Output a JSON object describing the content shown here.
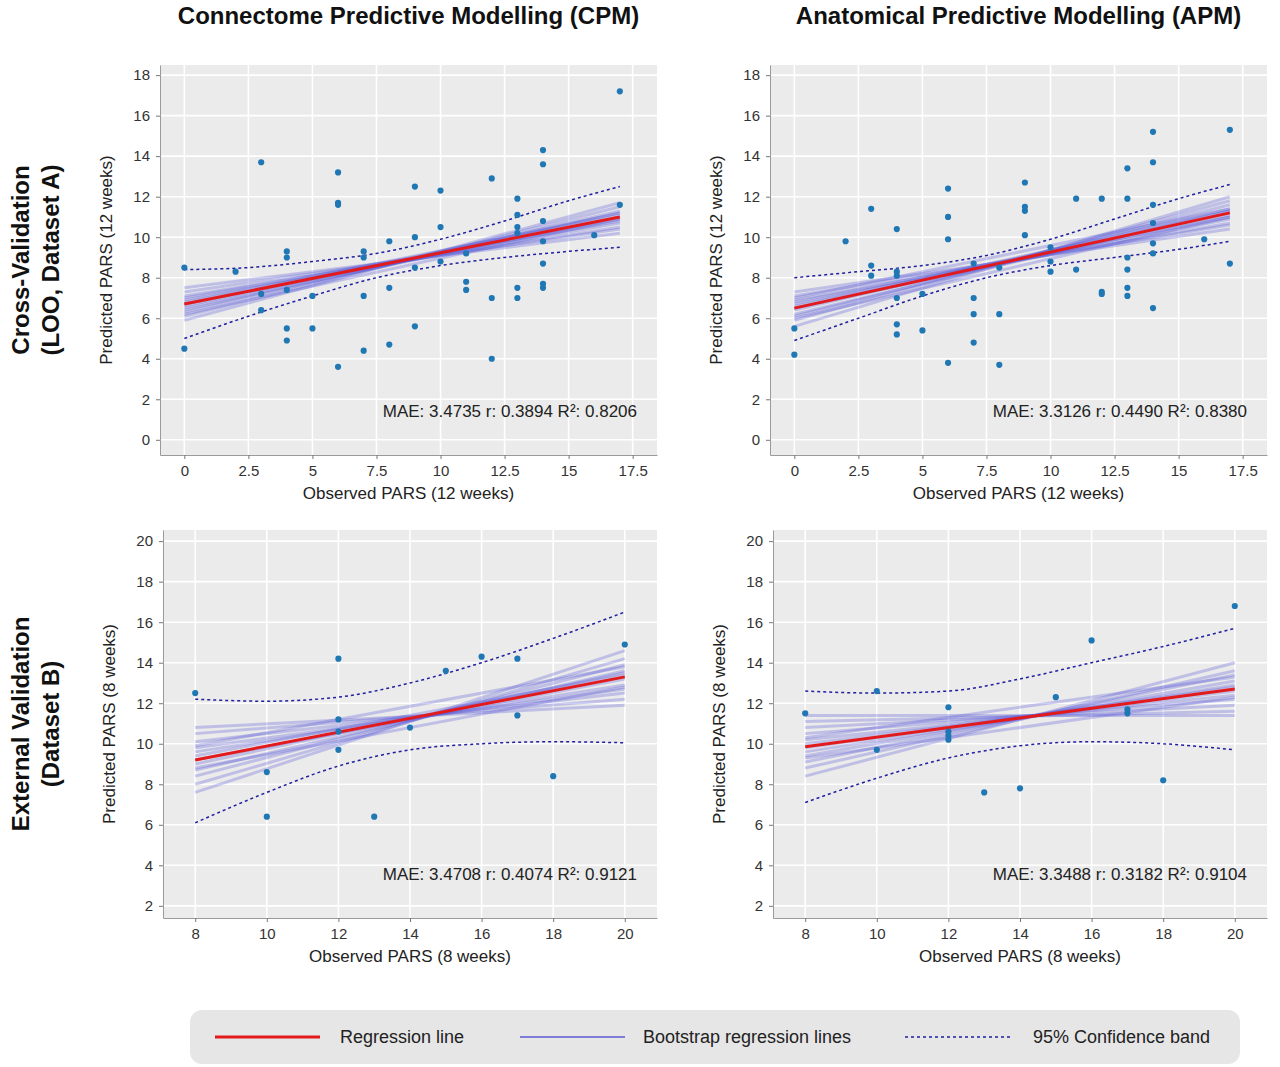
{
  "figure": {
    "column_titles": [
      "Connectome Predictive Modelling (CPM)",
      "Anatomical Predictive Modelling (APM)"
    ],
    "row_titles": [
      [
        "Cross-Validation",
        "(LOO, Dataset A)"
      ],
      [
        "External Validation",
        "(Dataset B)"
      ]
    ],
    "legend": [
      {
        "label": "Regression line",
        "color": "#e31a1c",
        "line_style": "solid"
      },
      {
        "label": "Bootstrap regression lines",
        "color": "#5b5bd6",
        "line_style": "solid"
      },
      {
        "label": "95% Confidence band",
        "color": "#1f1fa0",
        "line_style": "dotted"
      }
    ]
  },
  "chart_data": [
    {
      "type": "scatter",
      "x_label": "Observed PARS (12 weeks)",
      "y_label": "Predicted PARS (12 weeks)",
      "annotation": "MAE: 3.4735 r: 0.3894 R²: 0.8206",
      "color": "#1f77b4",
      "marker": "circle",
      "grid": true,
      "xlim": [
        -0.95,
        18.45
      ],
      "ylim": [
        -0.75,
        18.5
      ],
      "xticks": [
        0,
        2.5,
        5,
        7.5,
        10,
        12.5,
        15,
        17.5
      ],
      "yticks": [
        0,
        2,
        4,
        6,
        8,
        10,
        12,
        14,
        16,
        18
      ],
      "x": [
        0,
        0,
        2,
        3,
        3,
        3,
        4,
        4,
        4,
        4,
        4,
        5,
        5,
        6,
        6,
        6,
        6,
        7,
        7,
        7,
        7,
        8,
        8,
        8,
        9,
        9,
        9,
        9,
        10,
        10,
        10,
        11,
        11,
        11,
        12,
        12,
        12,
        13,
        13,
        13,
        13,
        13,
        13,
        14,
        14,
        14,
        14,
        14,
        14,
        14,
        16,
        17,
        17
      ],
      "values": [
        8.5,
        4.5,
        8.3,
        13.7,
        7.2,
        6.4,
        9.3,
        9.0,
        7.4,
        5.5,
        4.9,
        7.1,
        5.5,
        13.2,
        11.7,
        11.6,
        3.6,
        9.3,
        9.0,
        7.1,
        4.4,
        9.8,
        7.5,
        4.7,
        12.5,
        10.0,
        8.5,
        5.6,
        12.3,
        10.5,
        8.8,
        9.2,
        7.8,
        7.4,
        12.9,
        7.0,
        4.0,
        11.9,
        11.1,
        10.5,
        10.2,
        7.5,
        7.0,
        14.3,
        13.6,
        10.8,
        9.8,
        8.7,
        7.7,
        7.5,
        10.1,
        17.2,
        11.6
      ],
      "regression_line": {
        "x": [
          0,
          17
        ],
        "values": [
          6.7,
          11.0
        ]
      },
      "bootstrap_lines": {
        "x": [
          0,
          17
        ],
        "values": [
          [
            5.9,
            11.7
          ],
          [
            6.1,
            11.5
          ],
          [
            6.3,
            11.3
          ],
          [
            6.4,
            11.2
          ],
          [
            6.5,
            11.0
          ],
          [
            6.6,
            11.2
          ],
          [
            6.7,
            10.9
          ],
          [
            6.8,
            11.1
          ],
          [
            6.9,
            10.7
          ],
          [
            7.0,
            10.8
          ],
          [
            7.1,
            10.5
          ],
          [
            7.3,
            10.4
          ],
          [
            7.5,
            10.2
          ],
          [
            6.2,
            10.9
          ]
        ]
      },
      "confidence_band": {
        "x": [
          0,
          2.5,
          5,
          7.5,
          10,
          12.5,
          15,
          17
        ],
        "upper": [
          8.4,
          8.5,
          8.8,
          9.2,
          9.9,
          10.8,
          11.8,
          12.5
        ],
        "lower": [
          5.0,
          6.1,
          7.1,
          8.0,
          8.6,
          9.0,
          9.3,
          9.5
        ]
      }
    },
    {
      "type": "scatter",
      "x_label": "Observed PARS (12 weeks)",
      "y_label": "Predicted PARS (12 weeks)",
      "annotation": "MAE: 3.3126 r: 0.4490 R²: 0.8380",
      "color": "#1f77b4",
      "marker": "circle",
      "grid": true,
      "xlim": [
        -0.95,
        18.45
      ],
      "ylim": [
        -0.75,
        18.5
      ],
      "xticks": [
        0,
        2.5,
        5,
        7.5,
        10,
        12.5,
        15,
        17.5
      ],
      "yticks": [
        0,
        2,
        4,
        6,
        8,
        10,
        12,
        14,
        16,
        18
      ],
      "x": [
        0,
        0,
        2,
        3,
        3,
        3,
        4,
        4,
        4,
        4,
        4,
        4,
        5,
        5,
        6,
        6,
        6,
        6,
        7,
        7,
        7,
        7,
        8,
        8,
        8,
        9,
        9,
        9,
        9,
        10,
        10,
        10,
        11,
        11,
        12,
        12,
        12,
        13,
        13,
        13,
        13,
        13,
        13,
        14,
        14,
        14,
        14,
        14,
        14,
        14,
        16,
        17,
        17
      ],
      "values": [
        5.5,
        4.2,
        9.8,
        11.4,
        8.6,
        8.1,
        10.4,
        8.3,
        8.1,
        7.0,
        5.7,
        5.2,
        7.2,
        5.4,
        12.4,
        11.0,
        9.9,
        3.8,
        8.7,
        7.0,
        6.2,
        4.8,
        8.5,
        6.2,
        3.7,
        12.7,
        11.5,
        11.3,
        10.1,
        9.5,
        8.8,
        8.3,
        11.9,
        8.4,
        11.9,
        7.3,
        7.2,
        13.4,
        11.9,
        9.0,
        8.4,
        7.5,
        7.1,
        15.2,
        13.7,
        11.6,
        10.7,
        9.7,
        9.2,
        6.5,
        9.9,
        15.3,
        8.7
      ],
      "regression_line": {
        "x": [
          0,
          17
        ],
        "values": [
          6.5,
          11.2
        ]
      },
      "bootstrap_lines": {
        "x": [
          0,
          17
        ],
        "values": [
          [
            5.6,
            12.0
          ],
          [
            5.9,
            11.8
          ],
          [
            6.1,
            11.6
          ],
          [
            6.2,
            11.3
          ],
          [
            6.4,
            11.4
          ],
          [
            6.5,
            11.1
          ],
          [
            6.6,
            11.3
          ],
          [
            6.7,
            10.9
          ],
          [
            6.8,
            11.0
          ],
          [
            6.9,
            10.7
          ],
          [
            7.1,
            10.6
          ],
          [
            7.3,
            10.4
          ],
          [
            6.0,
            11.0
          ],
          [
            7.0,
            11.4
          ]
        ]
      },
      "confidence_band": {
        "x": [
          0,
          2.5,
          5,
          7.5,
          10,
          12.5,
          15,
          17
        ],
        "upper": [
          8.0,
          8.3,
          8.6,
          9.1,
          9.9,
          10.9,
          11.9,
          12.6
        ],
        "lower": [
          4.9,
          6.0,
          7.1,
          8.0,
          8.6,
          9.0,
          9.4,
          9.8
        ]
      }
    },
    {
      "type": "scatter",
      "x_label": "Observed PARS (8 weeks)",
      "y_label": "Predicted PARS (8 weeks)",
      "annotation": "MAE: 3.4708 r: 0.4074 R²: 0.9121",
      "color": "#1f77b4",
      "marker": "circle",
      "grid": true,
      "xlim": [
        7.1,
        20.9
      ],
      "ylim": [
        1.4,
        20.55
      ],
      "xticks": [
        8,
        10,
        12,
        14,
        16,
        18,
        20
      ],
      "yticks": [
        2,
        4,
        6,
        8,
        10,
        12,
        14,
        16,
        18,
        20
      ],
      "x": [
        8,
        10,
        10,
        12,
        12,
        12,
        12,
        13,
        14,
        15,
        16,
        17,
        17,
        18,
        20
      ],
      "values": [
        12.5,
        8.6,
        6.4,
        14.2,
        11.2,
        10.6,
        9.7,
        6.4,
        10.8,
        13.6,
        14.3,
        14.2,
        11.4,
        8.4,
        14.9
      ],
      "regression_line": {
        "x": [
          8,
          20
        ],
        "values": [
          9.2,
          13.3
        ]
      },
      "bootstrap_lines": {
        "x": [
          8,
          20
        ],
        "values": [
          [
            7.6,
            14.6
          ],
          [
            8.0,
            14.2
          ],
          [
            8.4,
            13.9
          ],
          [
            8.7,
            13.6
          ],
          [
            9.0,
            13.5
          ],
          [
            9.2,
            13.2
          ],
          [
            9.4,
            13.4
          ],
          [
            9.6,
            12.9
          ],
          [
            9.8,
            12.7
          ],
          [
            10.1,
            12.5
          ],
          [
            10.5,
            12.2
          ],
          [
            8.8,
            12.8
          ],
          [
            9.9,
            13.8
          ],
          [
            10.8,
            11.9
          ]
        ]
      },
      "confidence_band": {
        "x": [
          8,
          10,
          12,
          14,
          16,
          18,
          20
        ],
        "upper": [
          12.2,
          12.1,
          12.3,
          13.0,
          14.0,
          15.2,
          16.5
        ],
        "lower": [
          6.1,
          7.6,
          8.9,
          9.7,
          10.0,
          10.1,
          10.05
        ]
      }
    },
    {
      "type": "scatter",
      "x_label": "Observed PARS (8 weeks)",
      "y_label": "Predicted PARS (8 weeks)",
      "annotation": "MAE: 3.3488 r: 0.3182 R²: 0.9104",
      "color": "#1f77b4",
      "marker": "circle",
      "grid": true,
      "xlim": [
        7.1,
        20.9
      ],
      "ylim": [
        1.4,
        20.55
      ],
      "xticks": [
        8,
        10,
        12,
        14,
        16,
        18,
        20
      ],
      "yticks": [
        2,
        4,
        6,
        8,
        10,
        12,
        14,
        16,
        18,
        20
      ],
      "x": [
        8,
        10,
        10,
        12,
        12,
        12,
        12,
        13,
        14,
        15,
        16,
        17,
        17,
        18,
        20
      ],
      "values": [
        11.5,
        12.6,
        9.7,
        11.8,
        10.6,
        10.4,
        10.2,
        7.6,
        7.8,
        12.3,
        15.1,
        11.7,
        11.5,
        8.2,
        16.8
      ],
      "regression_line": {
        "x": [
          8,
          20
        ],
        "values": [
          9.85,
          12.7
        ]
      },
      "bootstrap_lines": {
        "x": [
          8,
          20
        ],
        "values": [
          [
            8.4,
            14.0
          ],
          [
            8.8,
            13.6
          ],
          [
            9.1,
            13.4
          ],
          [
            9.4,
            13.1
          ],
          [
            9.6,
            12.9
          ],
          [
            9.8,
            12.8
          ],
          [
            10.0,
            12.6
          ],
          [
            10.2,
            12.4
          ],
          [
            10.5,
            12.2
          ],
          [
            10.8,
            11.9
          ],
          [
            11.1,
            11.6
          ],
          [
            9.3,
            12.3
          ],
          [
            10.3,
            13.3
          ],
          [
            11.4,
            11.4
          ]
        ]
      },
      "confidence_band": {
        "x": [
          8,
          10,
          12,
          14,
          16,
          18,
          20
        ],
        "upper": [
          12.6,
          12.5,
          12.6,
          13.2,
          14.0,
          14.8,
          15.7
        ],
        "lower": [
          7.1,
          8.3,
          9.3,
          9.9,
          10.1,
          10.0,
          9.7
        ]
      }
    }
  ]
}
